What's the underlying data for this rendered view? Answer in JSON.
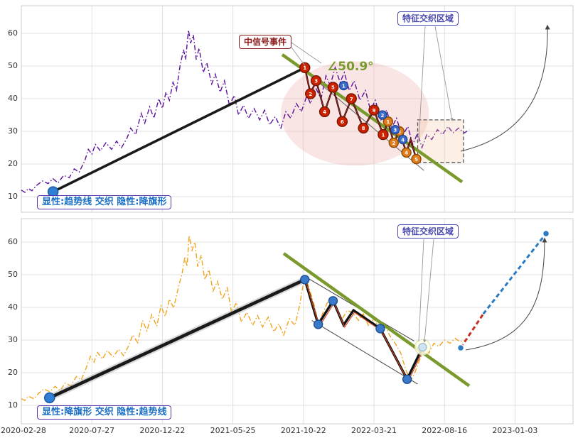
{
  "annotations": {
    "signal_event": "中信号事件",
    "angle": "∠50.9°",
    "weave_top": "特征交织区域",
    "weave_bottom": "特征交织区域",
    "pattern_top": "显性:趋势线 交织 隐性:降旗形",
    "pattern_bottom": "显性:降旗形 交织 隐性:趋势线"
  },
  "colors": {
    "price_top": "#5a0f9b",
    "price_bottom": "#f0a41e",
    "trend_black": "#1a1a1a",
    "trend_green": "#7a9a2e",
    "marker_red": "#cc2200",
    "marker_orange": "#e07c1e",
    "marker_blue": "#3a6bc8",
    "rise_red": "#c23324",
    "rise_blue": "#2b7bc4",
    "grid": "#e0e0e0",
    "panel_border": "#cccccc",
    "ellipse_fill": "rgba(240,170,170,0.30)",
    "feature_box_fill": "rgba(245,190,150,0.25)"
  },
  "chart_data": [
    {
      "type": "line",
      "panel": "top",
      "title": "",
      "ylim": [
        5,
        68.5
      ],
      "y_ticks": [
        10,
        20,
        30,
        40,
        50,
        60
      ],
      "x_tick_labels": [
        "2020-02-28",
        "2020-07-27",
        "2020-12-22",
        "2021-05-25",
        "2021-10-22",
        "2022-03-21",
        "2022-08-16",
        "2023-01-03"
      ],
      "series_name": "price-top",
      "price_points": [
        [
          0,
          12
        ],
        [
          0.05,
          11.3
        ],
        [
          0.1,
          12.5
        ],
        [
          0.15,
          11.8
        ],
        [
          0.22,
          13.5
        ],
        [
          0.3,
          14.8
        ],
        [
          0.38,
          14
        ],
        [
          0.45,
          15.5
        ],
        [
          0.52,
          14.2
        ],
        [
          0.6,
          16.5
        ],
        [
          0.68,
          15.8
        ],
        [
          0.75,
          18.5
        ],
        [
          0.82,
          17.5
        ],
        [
          0.9,
          21
        ],
        [
          0.95,
          24.5
        ],
        [
          1,
          23
        ],
        [
          1.05,
          26
        ],
        [
          1.12,
          24
        ],
        [
          1.2,
          26.5
        ],
        [
          1.28,
          24.5
        ],
        [
          1.35,
          27
        ],
        [
          1.42,
          25
        ],
        [
          1.5,
          28
        ],
        [
          1.55,
          31
        ],
        [
          1.62,
          29
        ],
        [
          1.7,
          35.5
        ],
        [
          1.75,
          32.5
        ],
        [
          1.82,
          37.5
        ],
        [
          1.88,
          34
        ],
        [
          1.95,
          40
        ],
        [
          2,
          37
        ],
        [
          2.05,
          42
        ],
        [
          2.1,
          39.5
        ],
        [
          2.15,
          45
        ],
        [
          2.2,
          42.5
        ],
        [
          2.25,
          50
        ],
        [
          2.3,
          55
        ],
        [
          2.33,
          52
        ],
        [
          2.37,
          61
        ],
        [
          2.4,
          57
        ],
        [
          2.44,
          59.5
        ],
        [
          2.48,
          52
        ],
        [
          2.52,
          55.5
        ],
        [
          2.58,
          48
        ],
        [
          2.63,
          51
        ],
        [
          2.7,
          44.5
        ],
        [
          2.75,
          47.5
        ],
        [
          2.82,
          42
        ],
        [
          2.88,
          45.5
        ],
        [
          2.95,
          38
        ],
        [
          3.02,
          41
        ],
        [
          3.08,
          35
        ],
        [
          3.15,
          38
        ],
        [
          3.22,
          34
        ],
        [
          3.3,
          37
        ],
        [
          3.38,
          33.5
        ],
        [
          3.45,
          36.5
        ],
        [
          3.52,
          32
        ],
        [
          3.6,
          34.5
        ],
        [
          3.68,
          31
        ],
        [
          3.75,
          36
        ],
        [
          3.82,
          34
        ],
        [
          3.9,
          38.5
        ],
        [
          3.97,
          36
        ],
        [
          4.05,
          41
        ],
        [
          4.1,
          38.5
        ],
        [
          4.18,
          43
        ],
        [
          4.25,
          40
        ],
        [
          4.32,
          47
        ],
        [
          4.38,
          44
        ],
        [
          4.45,
          49.5
        ],
        [
          4.52,
          45
        ],
        [
          4.58,
          48
        ],
        [
          4.65,
          42.5
        ],
        [
          4.72,
          45.5
        ],
        [
          4.8,
          39.5
        ],
        [
          4.88,
          42.5
        ],
        [
          4.95,
          36.5
        ],
        [
          5.02,
          39.5
        ],
        [
          5.1,
          33.5
        ],
        [
          5.18,
          36.5
        ],
        [
          5.25,
          31
        ],
        [
          5.32,
          34
        ],
        [
          5.4,
          28.5
        ],
        [
          5.48,
          31.5
        ],
        [
          5.55,
          26
        ],
        [
          5.62,
          29.5
        ],
        [
          5.68,
          25
        ],
        [
          5.75,
          29
        ],
        [
          5.82,
          27.5
        ],
        [
          5.9,
          30.5
        ],
        [
          5.97,
          29
        ],
        [
          6.05,
          31.5
        ],
        [
          6.12,
          29.5
        ],
        [
          6.2,
          31
        ],
        [
          6.28,
          29.5
        ],
        [
          6.35,
          30.5
        ]
      ],
      "uptrend": [
        [
          0.45,
          11.5
        ],
        [
          4.05,
          49.8
        ]
      ],
      "channel": [
        [
          4.02,
          48.5
        ],
        [
          5.71,
          18.0
        ]
      ],
      "green_trend": [
        [
          3.7,
          53.5
        ],
        [
          6.25,
          14.5
        ]
      ],
      "wave": [
        [
          4.02,
          49.5
        ],
        [
          4.1,
          41.5
        ],
        [
          4.18,
          45.5
        ],
        [
          4.3,
          36.0
        ],
        [
          4.42,
          43.5
        ],
        [
          4.55,
          33.0
        ],
        [
          4.68,
          40.0
        ],
        [
          4.85,
          31.0
        ],
        [
          5.0,
          36.5
        ],
        [
          5.13,
          29.0
        ],
        [
          5.2,
          33.0
        ],
        [
          5.28,
          26.5
        ],
        [
          5.36,
          30.0
        ],
        [
          5.46,
          23.5
        ],
        [
          5.52,
          27.5
        ],
        [
          5.6,
          21.5
        ]
      ],
      "markers": {
        "start": [
          [
            0.45,
            11.5
          ]
        ],
        "red": [
          [
            4.02,
            49.5,
            "1"
          ],
          [
            4.1,
            41.5,
            "2"
          ],
          [
            4.18,
            45.5,
            "3"
          ],
          [
            4.3,
            36.0,
            "4"
          ],
          [
            4.42,
            43.5,
            "5"
          ],
          [
            4.55,
            33.0,
            "6"
          ],
          [
            4.68,
            40.0,
            "7"
          ],
          [
            4.85,
            31.0,
            "8"
          ],
          [
            5.0,
            36.5,
            "9"
          ],
          [
            5.13,
            29.0,
            "1"
          ]
        ],
        "orange": [
          [
            5.2,
            33.0,
            "1"
          ],
          [
            5.28,
            26.5,
            "2"
          ],
          [
            5.36,
            30.0,
            "3"
          ],
          [
            5.46,
            23.5,
            "4"
          ],
          [
            5.6,
            21.5,
            "5"
          ]
        ],
        "blue": [
          [
            4.57,
            44.0,
            "1"
          ],
          [
            5.12,
            35.0,
            "2"
          ],
          [
            5.3,
            30.5,
            "3"
          ],
          [
            5.41,
            27.5,
            "4"
          ]
        ]
      },
      "ellipse": {
        "cx": 4.73,
        "cy": 35.5,
        "rx": 1.05,
        "ry": 16
      },
      "feature_box": {
        "x1": 5.62,
        "y1": 20.5,
        "x2": 6.27,
        "y2": 33.5
      }
    },
    {
      "type": "line",
      "panel": "bottom",
      "title": "",
      "ylim": [
        5,
        68.5
      ],
      "y_ticks": [
        10,
        20,
        30,
        40,
        50,
        60
      ],
      "x_tick_labels": [
        "2020-02-28",
        "2020-07-27",
        "2020-12-22",
        "2021-05-25",
        "2021-10-22",
        "2022-03-21",
        "2022-08-16",
        "2023-01-03"
      ],
      "series_name": "price-bottom",
      "price_points": [
        [
          0,
          12
        ],
        [
          0.05,
          11.5
        ],
        [
          0.1,
          12.8
        ],
        [
          0.18,
          12
        ],
        [
          0.25,
          13.8
        ],
        [
          0.32,
          15
        ],
        [
          0.4,
          14.2
        ],
        [
          0.48,
          15.8
        ],
        [
          0.55,
          14.5
        ],
        [
          0.62,
          16.8
        ],
        [
          0.7,
          16
        ],
        [
          0.78,
          18.8
        ],
        [
          0.85,
          17.8
        ],
        [
          0.92,
          21.5
        ],
        [
          0.98,
          25
        ],
        [
          1.03,
          23.2
        ],
        [
          1.08,
          26.2
        ],
        [
          1.15,
          24.2
        ],
        [
          1.22,
          26.8
        ],
        [
          1.3,
          24.8
        ],
        [
          1.38,
          27.2
        ],
        [
          1.45,
          25.2
        ],
        [
          1.52,
          28.2
        ],
        [
          1.58,
          31.5
        ],
        [
          1.65,
          29.2
        ],
        [
          1.72,
          36
        ],
        [
          1.78,
          32.8
        ],
        [
          1.85,
          37.8
        ],
        [
          1.92,
          34.2
        ],
        [
          1.98,
          40.5
        ],
        [
          2.04,
          37.2
        ],
        [
          2.1,
          42.5
        ],
        [
          2.16,
          39.8
        ],
        [
          2.22,
          45.5
        ],
        [
          2.28,
          50.5
        ],
        [
          2.32,
          55.5
        ],
        [
          2.35,
          52.5
        ],
        [
          2.38,
          62
        ],
        [
          2.42,
          57.5
        ],
        [
          2.46,
          60
        ],
        [
          2.5,
          52.5
        ],
        [
          2.55,
          56
        ],
        [
          2.6,
          48.5
        ],
        [
          2.66,
          51.5
        ],
        [
          2.72,
          45
        ],
        [
          2.78,
          48
        ],
        [
          2.85,
          42.5
        ],
        [
          2.92,
          46
        ],
        [
          2.98,
          38.5
        ],
        [
          3.05,
          41.5
        ],
        [
          3.12,
          35.5
        ],
        [
          3.2,
          38.5
        ],
        [
          3.28,
          34.5
        ],
        [
          3.35,
          37.5
        ],
        [
          3.42,
          34
        ],
        [
          3.5,
          37
        ],
        [
          3.58,
          32.5
        ],
        [
          3.65,
          35
        ],
        [
          3.72,
          31.5
        ],
        [
          3.8,
          36.5
        ],
        [
          3.88,
          34.5
        ],
        [
          3.95,
          41
        ],
        [
          3.98,
          45
        ],
        [
          4.02,
          49.5
        ],
        [
          4.08,
          46
        ],
        [
          4.15,
          41
        ],
        [
          4.21,
          35
        ],
        [
          4.28,
          38.5
        ],
        [
          4.35,
          42
        ],
        [
          4.42,
          41.5
        ],
        [
          4.5,
          38
        ],
        [
          4.55,
          36.5
        ],
        [
          4.62,
          39
        ],
        [
          4.7,
          38.5
        ],
        [
          4.78,
          36
        ],
        [
          4.85,
          38
        ],
        [
          4.92,
          34.5
        ],
        [
          5,
          36.5
        ],
        [
          5.08,
          33.5
        ],
        [
          5.15,
          35
        ],
        [
          5.22,
          31.5
        ],
        [
          5.3,
          29
        ],
        [
          5.38,
          26
        ],
        [
          5.45,
          21
        ],
        [
          5.52,
          17.5
        ],
        [
          5.58,
          20
        ],
        [
          5.65,
          24
        ],
        [
          5.72,
          27.5
        ],
        [
          5.78,
          26
        ],
        [
          5.85,
          29
        ],
        [
          5.92,
          28
        ],
        [
          6,
          30
        ],
        [
          6.08,
          29
        ],
        [
          6.15,
          30.5
        ],
        [
          6.22,
          29.5
        ],
        [
          6.28,
          30
        ]
      ],
      "uptrend": [
        [
          0.4,
          12.3
        ],
        [
          4.02,
          48.5
        ]
      ],
      "zigzag": [
        [
          4.02,
          48.5
        ],
        [
          4.21,
          34.8
        ],
        [
          4.42,
          42.0
        ],
        [
          4.57,
          34.6
        ],
        [
          4.71,
          39.1
        ],
        [
          5.09,
          33.5
        ],
        [
          5.47,
          18.0
        ],
        [
          5.69,
          27.8
        ]
      ],
      "channel_upper": [
        [
          4.01,
          49.6
        ],
        [
          5.57,
          29.7
        ]
      ],
      "channel_lower": [
        [
          4.12,
          36.0
        ],
        [
          5.62,
          16.5
        ]
      ],
      "green_trend": [
        [
          3.72,
          56.5
        ],
        [
          6.35,
          16.0
        ]
      ],
      "rise_red": [
        [
          6.23,
          27.6
        ],
        [
          6.55,
          38.0
        ]
      ],
      "rise_blue": [
        [
          6.55,
          38.0
        ],
        [
          7.44,
          62.6
        ]
      ],
      "markers": {
        "start": [
          [
            0.4,
            12.3
          ]
        ],
        "blue_plain": [
          [
            4.02,
            48.5
          ],
          [
            4.21,
            34.8
          ],
          [
            4.42,
            42.0
          ],
          [
            5.09,
            33.5
          ],
          [
            5.47,
            18.0
          ]
        ],
        "light": [
          [
            5.69,
            27.8
          ]
        ],
        "pins": [
          [
            6.23,
            27.6
          ],
          [
            7.44,
            62.6
          ]
        ]
      }
    }
  ]
}
